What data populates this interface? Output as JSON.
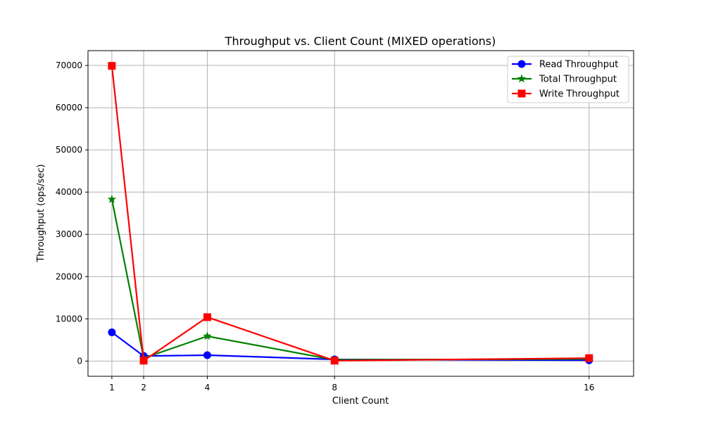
{
  "chart_data": {
    "type": "line",
    "title": "Throughput vs. Client Count (MIXED operations)",
    "xlabel": "Client Count",
    "ylabel": "Throughput (ops/sec)",
    "x": [
      1,
      2,
      4,
      8,
      16
    ],
    "xticks": [
      "1",
      "2",
      "4",
      "8",
      "16"
    ],
    "yticks": [
      "0",
      "10000",
      "20000",
      "30000",
      "40000",
      "50000",
      "60000",
      "70000"
    ],
    "xlim": [
      0.25,
      17.4
    ],
    "ylim": [
      -3600,
      73500
    ],
    "grid": true,
    "legend_position": "top-right",
    "series": [
      {
        "name": "Read Throughput",
        "color": "#0000ff",
        "marker": "circle",
        "values": [
          6800,
          1200,
          1400,
          400,
          200
        ]
      },
      {
        "name": "Total Throughput",
        "color": "#008000",
        "marker": "star",
        "values": [
          38300,
          700,
          5900,
          300,
          500
        ]
      },
      {
        "name": "Write Throughput",
        "color": "#ff0000",
        "marker": "square",
        "values": [
          69900,
          100,
          10400,
          100,
          700
        ]
      }
    ]
  }
}
